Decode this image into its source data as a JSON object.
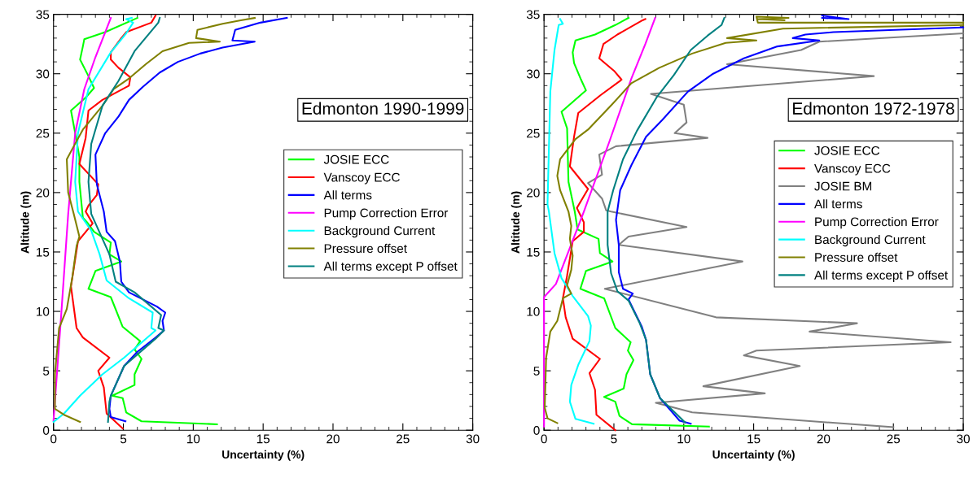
{
  "chart_data": [
    {
      "type": "line",
      "xlabel": "Uncertainty (%)",
      "ylabel": "Altitude (m)",
      "xlim": [
        0,
        30
      ],
      "ylim": [
        0,
        35
      ],
      "xticks": [
        0,
        5,
        10,
        15,
        20,
        25,
        30
      ],
      "yticks": [
        0,
        5,
        10,
        15,
        20,
        25,
        30,
        35
      ],
      "grid": false,
      "legend": "right",
      "annotations": [
        "Edmonton 1990-1999"
      ],
      "series": [
        {
          "name": "JOSIE ECC",
          "color": "#00ff00",
          "x": [
            11.7,
            6.3,
            5.2,
            4.95,
            4.2,
            5.8,
            5.8,
            6.3,
            5.8,
            6.2,
            4.95,
            4.1,
            2.5,
            3.0,
            4.85,
            4.0,
            4.1,
            2.9,
            2.4,
            2.1,
            1.85,
            1.85,
            1.55,
            1.25,
            2.3,
            2.9,
            2.5,
            1.9,
            2.1,
            2.2,
            3.7,
            6.0
          ],
          "values": [
            0.5,
            0.75,
            1.5,
            2.7,
            2.9,
            3.8,
            4.7,
            6.0,
            6.8,
            7.5,
            8.7,
            11.2,
            11.9,
            13.4,
            14.2,
            14.8,
            15.8,
            16.7,
            17.5,
            17.9,
            20.9,
            23.0,
            25.0,
            26.9,
            28.0,
            28.8,
            29.8,
            31.2,
            32.3,
            32.9,
            33.5,
            34.7
          ]
        },
        {
          "name": "Vanscoy ECC",
          "color": "#ff0000",
          "x": [
            4.95,
            3.8,
            3.6,
            3.2,
            4.0,
            2.1,
            1.65,
            1.25,
            1.75,
            2.8,
            2.3,
            2.5,
            3.1,
            3.2,
            1.85,
            2.3,
            2.5,
            3.5,
            5.4,
            5.5,
            4.65,
            4.1,
            4.1,
            4.85,
            5.2,
            7.0,
            7.3
          ],
          "values": [
            0.15,
            1.4,
            3.6,
            5.0,
            6.1,
            7.8,
            8.6,
            12.1,
            15.9,
            17.4,
            18.4,
            18.9,
            19.8,
            20.7,
            22.4,
            24.6,
            26.9,
            27.8,
            29.0,
            29.7,
            30.5,
            31.2,
            31.8,
            33.0,
            33.5,
            34.3,
            34.9
          ]
        },
        {
          "name": "All terms",
          "color": "#0000ff",
          "x": [
            5.15,
            4.1,
            4.0,
            4.1,
            5.05,
            6.0,
            7.3,
            7.9,
            7.8,
            8.0,
            7.4,
            5.4,
            4.85,
            4.75,
            4.4,
            3.8,
            3.6,
            3.1,
            3.0,
            3.7,
            4.65,
            5.4,
            6.4,
            7.6,
            8.9,
            10.5,
            12.1,
            14.4,
            12.8,
            13.0,
            14.8,
            16.7
          ],
          "values": [
            0.75,
            1.1,
            1.8,
            2.9,
            5.4,
            6.6,
            7.8,
            8.4,
            9.2,
            9.9,
            10.4,
            11.6,
            12.5,
            14.2,
            15.9,
            16.7,
            18.4,
            20.7,
            23.2,
            25.0,
            26.4,
            27.8,
            28.9,
            30.1,
            31.0,
            31.7,
            32.2,
            32.7,
            32.8,
            33.7,
            34.3,
            34.7
          ]
        },
        {
          "name": "Pump Correction Error",
          "color": "#ff00ff",
          "x": [
            0.0,
            0.55,
            1.05,
            1.55,
            2.2,
            3.0,
            4.1
          ],
          "values": [
            0.8,
            9.7,
            18.2,
            25.0,
            28.7,
            31.4,
            34.7
          ]
        },
        {
          "name": "Background Current",
          "color": "#00ffff",
          "x": [
            0.0,
            0.75,
            1.9,
            3.5,
            5.05,
            7.3,
            7.0,
            7.1,
            5.4,
            3.8,
            3.3,
            2.7,
            1.75,
            1.55,
            1.75,
            2.5,
            4.1,
            5.2,
            5.7,
            5.2,
            5.6
          ],
          "values": [
            0.7,
            1.4,
            2.9,
            4.7,
            6.1,
            8.4,
            8.6,
            9.9,
            11.1,
            12.6,
            14.8,
            16.8,
            18.4,
            20.9,
            25.0,
            28.7,
            31.8,
            33.4,
            34.3,
            34.6,
            34.7
          ]
        },
        {
          "name": "Pressure offset",
          "color": "#808000",
          "x": [
            1.9,
            0.75,
            0.1,
            0.1,
            0.4,
            0.95,
            1.35,
            1.65,
            1.85,
            1.45,
            1.05,
            0.95,
            1.45,
            2.1,
            3.5,
            4.3,
            5.4,
            6.6,
            7.8,
            9.7,
            11.9,
            10.2,
            10.3,
            12.1,
            13.4,
            14.4
          ],
          "values": [
            0.7,
            1.3,
            1.8,
            4.7,
            8.6,
            10.2,
            12.9,
            15.5,
            16.3,
            18.2,
            20.0,
            22.8,
            23.9,
            25.3,
            27.3,
            28.7,
            29.6,
            30.8,
            31.9,
            32.6,
            32.7,
            33.0,
            33.7,
            34.2,
            34.5,
            34.7
          ]
        },
        {
          "name": "All terms except P offset",
          "color": "#008080",
          "x": [
            3.9,
            4.0,
            4.1,
            5.05,
            7.3,
            7.9,
            7.5,
            7.7,
            5.8,
            4.45,
            4.0,
            2.7,
            2.5,
            2.7,
            3.5,
            4.65,
            5.8,
            7.0,
            7.5,
            7.6
          ],
          "values": [
            0.7,
            2.4,
            2.9,
            5.4,
            7.7,
            8.4,
            8.6,
            9.7,
            11.6,
            12.5,
            14.8,
            18.2,
            20.9,
            24.1,
            27.3,
            29.4,
            31.9,
            33.6,
            34.3,
            34.7
          ]
        }
      ]
    },
    {
      "type": "line",
      "xlabel": "Uncertainty (%)",
      "ylabel": "Altitude (m)",
      "xlim": [
        0,
        30
      ],
      "ylim": [
        0,
        35
      ],
      "xticks": [
        0,
        5,
        10,
        15,
        20,
        25,
        30
      ],
      "yticks": [
        0,
        5,
        10,
        15,
        20,
        25,
        30,
        35
      ],
      "grid": false,
      "legend": "right",
      "annotations": [
        "Edmonton 1972-1978"
      ],
      "series": [
        {
          "name": "JOSIE ECC",
          "color": "#00ff00",
          "x": [
            11.8,
            6.3,
            5.4,
            5.1,
            4.3,
            5.7,
            5.9,
            6.4,
            6.0,
            6.2,
            5.1,
            4.3,
            2.6,
            3.0,
            4.9,
            4.0,
            3.9,
            2.4,
            2.2,
            1.75,
            1.65,
            1.25,
            3.0,
            2.65,
            2.15,
            2.05,
            2.25,
            3.65,
            5.1,
            6.05
          ],
          "values": [
            0.3,
            0.5,
            1.2,
            2.4,
            2.8,
            3.5,
            4.7,
            5.9,
            6.7,
            7.4,
            8.6,
            11.1,
            11.9,
            13.4,
            14.2,
            14.9,
            16.1,
            16.9,
            18.4,
            20.9,
            25.4,
            26.8,
            28.6,
            29.5,
            30.9,
            31.8,
            32.8,
            33.3,
            34.1,
            34.7
          ]
        },
        {
          "name": "Vanscoy ECC",
          "color": "#ff0000",
          "x": [
            5.1,
            3.75,
            3.65,
            3.25,
            4.0,
            2.05,
            1.55,
            1.35,
            1.65,
            2.05,
            2.85,
            2.85,
            2.35,
            3.15,
            1.85,
            2.15,
            2.45,
            4.05,
            5.55,
            5.05,
            3.95,
            4.25,
            5.25,
            7.05,
            7.25
          ],
          "values": [
            0.0,
            1.3,
            3.4,
            4.8,
            6.0,
            7.7,
            9.5,
            11.1,
            13.0,
            15.9,
            16.7,
            17.5,
            18.7,
            20.3,
            22.2,
            24.7,
            26.7,
            28.2,
            29.5,
            30.2,
            31.3,
            32.5,
            33.3,
            34.5,
            34.6
          ]
        },
        {
          "name": "JOSIE BM",
          "color": "#808080",
          "x": [
            25.0,
            10.6,
            8.0,
            15.8,
            11.4,
            18.3,
            14.3,
            15.2,
            29.1,
            19.0,
            22.4,
            12.3,
            4.35,
            14.2,
            5.35,
            6.05,
            10.2,
            4.8,
            4.45,
            4.15,
            3.15,
            4.15,
            3.95,
            5.15,
            11.7,
            9.35,
            10.2,
            10.0,
            7.65,
            23.6,
            13.1,
            18.4,
            19.7,
            30.0
          ],
          "values": [
            0.25,
            1.5,
            2.3,
            3.1,
            3.7,
            5.4,
            6.3,
            6.7,
            7.4,
            8.3,
            9.0,
            9.5,
            11.9,
            14.2,
            15.6,
            16.3,
            17.1,
            18.4,
            18.5,
            19.5,
            20.8,
            21.5,
            23.2,
            23.9,
            24.6,
            25.0,
            25.9,
            27.4,
            28.3,
            29.8,
            30.8,
            32.0,
            32.7,
            33.4
          ]
        },
        {
          "name": "All terms",
          "color": "#0000ff",
          "x": [
            10.5,
            9.7,
            8.3,
            7.6,
            7.3,
            7.0,
            6.05,
            6.35,
            5.65,
            5.35,
            5.35,
            5.15,
            5.45,
            6.25,
            7.3,
            8.45,
            10.3,
            12.1,
            14.3,
            16.7,
            19.7,
            17.8,
            18.7,
            20.7,
            30.0,
            null,
            19.9,
            21.8,
            19.9
          ],
          "values": [
            0.55,
            0.8,
            2.7,
            4.7,
            7.6,
            8.7,
            11.0,
            11.5,
            11.9,
            13.3,
            15.6,
            17.7,
            20.2,
            22.3,
            24.7,
            26.1,
            28.5,
            30.0,
            31.3,
            32.3,
            32.8,
            33.0,
            33.3,
            33.5,
            33.9,
            null,
            34.7,
            34.6,
            34.9
          ]
        },
        {
          "name": "Pump Correction Error",
          "color": "#ff00ff",
          "x": [
            0.0,
            0.0,
            0.85,
            2.85,
            4.65,
            6.25,
            7.25,
            7.95
          ],
          "values": [
            0.3,
            11.2,
            12.3,
            18.4,
            24.2,
            29.6,
            32.5,
            34.7
          ]
        },
        {
          "name": "Background Current",
          "color": "#00ffff",
          "x": [
            3.55,
            2.25,
            1.85,
            1.95,
            2.45,
            3.25,
            3.35,
            3.15,
            2.05,
            1.25,
            0.75,
            0.35,
            0.25,
            0.45,
            0.75,
            1.05,
            1.35,
            1.15
          ],
          "values": [
            0.55,
            0.95,
            2.4,
            3.8,
            5.5,
            7.5,
            8.8,
            9.6,
            11.3,
            12.8,
            14.9,
            18.4,
            19.0,
            28.5,
            32.0,
            34.1,
            34.2,
            34.6
          ]
        },
        {
          "name": "Pressure offset",
          "color": "#808000",
          "x": [
            0.95,
            0.25,
            0.05,
            0.15,
            0.45,
            0.95,
            1.35,
            1.95,
            1.65,
            1.95,
            2.05,
            1.85,
            1.95,
            1.75,
            1.15,
            0.95,
            1.15,
            2.25,
            3.15,
            4.85,
            6.25,
            8.25,
            10.6,
            13.0,
            15.2,
            13.1,
            17.1,
            30.0,
            null,
            30.0,
            15.3,
            15.2,
            17.5,
            15.3,
            17.2
          ],
          "values": [
            0.6,
            1.0,
            1.9,
            6.1,
            8.3,
            9.2,
            11.1,
            11.5,
            12.2,
            13.5,
            14.7,
            16.1,
            17.2,
            18.4,
            20.2,
            21.4,
            22.8,
            24.5,
            25.3,
            27.4,
            29.2,
            30.5,
            31.7,
            32.6,
            32.8,
            33.0,
            33.8,
            34.1,
            null,
            34.3,
            34.3,
            34.8,
            34.7,
            34.6,
            34.5
          ]
        },
        {
          "name": "All terms except P offset",
          "color": "#008080",
          "x": [
            10.1,
            8.3,
            7.6,
            7.3,
            6.85,
            6.05,
            5.25,
            4.8,
            4.55,
            4.55,
            4.95,
            5.65,
            6.65,
            8.05,
            9.3,
            10.5,
            11.7,
            12.7,
            12.9
          ],
          "values": [
            0.65,
            2.7,
            4.7,
            7.6,
            9.0,
            10.9,
            11.7,
            13.2,
            15.6,
            18.4,
            20.2,
            22.8,
            25.2,
            28.0,
            29.9,
            32.0,
            33.2,
            34.1,
            34.7
          ]
        }
      ]
    }
  ]
}
